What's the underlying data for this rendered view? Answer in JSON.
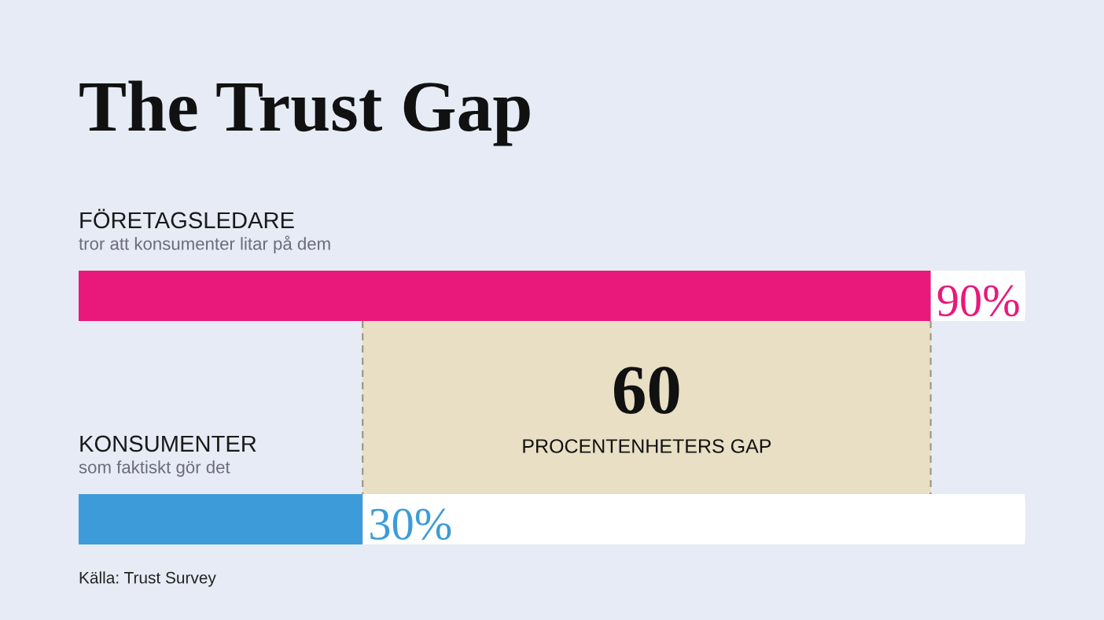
{
  "chart_data": {
    "type": "bar",
    "orientation": "horizontal",
    "title": "The Trust Gap",
    "categories": [
      "FÖRETAGSLEDARE",
      "KONSUMENTER"
    ],
    "values": [
      90,
      30
    ],
    "colors": [
      "#e8197a",
      "#3d9bd9"
    ],
    "value_labels": [
      "90%",
      "30%"
    ],
    "xlim": [
      0,
      100
    ],
    "tick_labels": "y",
    "legend": false,
    "bands": [
      {
        "axis": "x",
        "from": 30,
        "to": 90,
        "label": "PROCENTENHETERS GAP",
        "color": "#e8dfc4"
      }
    ],
    "annotations": [
      "tror att konsumenter litar på dem",
      "som faktiskt gör det",
      "60",
      "Källa: Trust Survey"
    ]
  }
}
